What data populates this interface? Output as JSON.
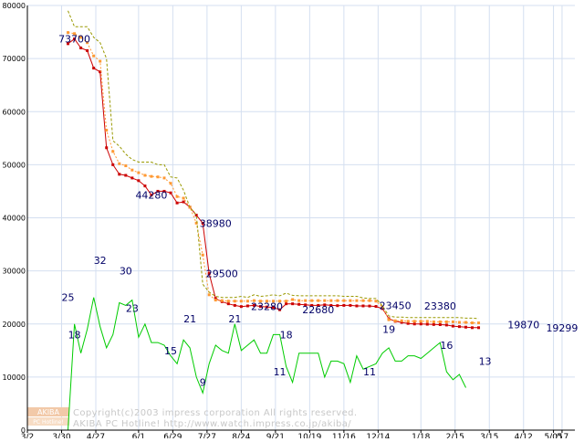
{
  "chart_data": {
    "type": "line",
    "ylim": [
      0,
      80000
    ],
    "y_ticks": [
      "0",
      "10000",
      "20000",
      "30000",
      "40000",
      "50000",
      "60000",
      "70000",
      "80000"
    ],
    "x_ticks": [
      "3/2",
      "3/30",
      "4/27",
      "6/1",
      "6/29",
      "7/27",
      "8/24",
      "9/21",
      "10/19",
      "11/16",
      "12/14",
      "1/18",
      "2/15",
      "3/15",
      "4/12",
      "5/05",
      "/17"
    ],
    "grid": true,
    "x_tick_positions": [
      0,
      4,
      8,
      13,
      17,
      21,
      25,
      29,
      33,
      37,
      41,
      46,
      50,
      54,
      58,
      61.5,
      62.5
    ],
    "x_max": 64,
    "x": [
      4.0,
      4.75,
      5.5,
      6.25,
      7.0,
      7.75,
      8.5,
      9.25,
      10.0,
      10.75,
      11.5,
      12.25,
      13.0,
      13.75,
      14.5,
      15.25,
      16.0,
      16.75,
      17.5,
      18.25,
      19.0,
      19.75,
      20.5,
      21.25,
      22.0,
      22.75,
      23.5,
      24.25,
      25.0,
      25.75,
      26.5,
      27.25,
      28.0,
      28.75,
      29.5,
      30.25,
      31.0,
      31.75,
      32.5,
      33.25,
      34.0,
      34.75,
      35.5,
      36.25,
      37.0,
      37.75,
      38.5,
      39.25,
      40.0,
      40.75,
      41.5,
      42.25,
      43.0,
      43.75,
      44.5,
      45.25,
      46.0,
      46.75,
      47.5,
      48.25,
      49.0,
      49.75,
      50.5,
      51.25,
      52.0,
      52.75,
      53.5,
      54.25,
      55.0,
      55.75,
      56.5,
      57.25,
      58.0,
      58.75,
      59.5,
      60.25,
      61.0,
      61.75,
      62.5,
      63.25
    ],
    "series": [
      {
        "color": "#cc0000",
        "style": "solid-marker",
        "values": [
          null,
          72800,
          73700,
          72000,
          71500,
          68200,
          67500,
          53200,
          50000,
          48200,
          48000,
          47500,
          47000,
          46000,
          44280,
          45000,
          45000,
          44700,
          42800,
          43000,
          42000,
          40500,
          38980,
          29500,
          24800,
          24200,
          23800,
          23500,
          23280,
          23400,
          23500,
          23300,
          23200,
          23100,
          22680,
          23800,
          23800,
          23700,
          23600,
          23500,
          23500,
          23600,
          23500,
          23450,
          23500,
          23500,
          23400,
          23400,
          23380,
          23300,
          22900,
          21000,
          20500,
          20300,
          20100,
          20000,
          20000,
          19950,
          19900,
          19870,
          19800,
          19600,
          19500,
          19400,
          19300,
          19299,
          null,
          null,
          null,
          null,
          null,
          null,
          null,
          null,
          null,
          null,
          null,
          null,
          null,
          null
        ]
      },
      {
        "color": "#ff9933",
        "style": "dotted-marker",
        "values": [
          null,
          74900,
          74700,
          74000,
          73000,
          70500,
          69500,
          56500,
          52500,
          50200,
          49800,
          49000,
          48500,
          48000,
          47800,
          47700,
          47500,
          46500,
          44000,
          43700,
          42000,
          39000,
          33000,
          25500,
          24500,
          24400,
          24300,
          24300,
          24300,
          24300,
          24400,
          24300,
          24300,
          24300,
          24300,
          24300,
          24600,
          24400,
          24400,
          24400,
          24400,
          24400,
          24400,
          24400,
          24400,
          24400,
          24400,
          24400,
          24400,
          24300,
          23200,
          20800,
          20600,
          20600,
          20500,
          20500,
          20500,
          20500,
          20400,
          20400,
          20400,
          20400,
          20300,
          20300,
          20200,
          20200,
          null,
          null,
          null,
          null,
          null,
          null,
          null,
          null,
          null,
          null,
          null,
          null,
          null,
          null
        ]
      },
      {
        "color": "#999900",
        "style": "dashed",
        "values": [
          null,
          79000,
          76000,
          76000,
          76000,
          74000,
          73000,
          70000,
          54500,
          53500,
          52000,
          51000,
          50500,
          50500,
          50500,
          50000,
          50000,
          47700,
          47500,
          45200,
          42000,
          40500,
          27500,
          26000,
          25200,
          25000,
          25000,
          25000,
          25200,
          25000,
          25500,
          25200,
          25300,
          25500,
          25300,
          25800,
          25400,
          25300,
          25300,
          25300,
          25300,
          25300,
          25300,
          25300,
          25200,
          25200,
          25200,
          24900,
          24800,
          24800,
          23400,
          21500,
          21300,
          21300,
          21200,
          21200,
          21200,
          21200,
          21200,
          21200,
          21200,
          21200,
          21200,
          21100,
          21100,
          21000,
          null,
          null,
          null,
          null,
          null,
          null,
          null,
          null,
          null,
          null,
          null,
          null,
          null,
          null
        ]
      },
      {
        "color": "#00cc00",
        "style": "solid",
        "values": [
          0,
          0,
          20000,
          14500,
          19000,
          25000,
          19500,
          15500,
          18000,
          24000,
          23500,
          24500,
          17500,
          20000,
          16500,
          16500,
          16000,
          14000,
          12500,
          17000,
          15500,
          10000,
          7000,
          12500,
          16000,
          15000,
          14500,
          20000,
          15000,
          16000,
          17000,
          14500,
          14500,
          18000,
          18000,
          12000,
          9000,
          14500,
          14500,
          14500,
          14500,
          10000,
          13000,
          13000,
          12500,
          9000,
          14000,
          11500,
          12000,
          12500,
          14500,
          15500,
          13000,
          13000,
          14000,
          14000,
          13500,
          14500,
          15500,
          16500,
          11000,
          9500,
          10500,
          8000,
          null,
          null,
          null,
          null,
          null,
          null,
          null,
          null,
          null,
          null,
          null,
          null,
          null,
          null,
          null,
          null
        ]
      }
    ],
    "data_labels": [
      {
        "text": "73700",
        "x": 5.5,
        "y": 73700
      },
      {
        "text": "44280",
        "x": 14.5,
        "y": 44280
      },
      {
        "text": "38980",
        "x": 22.0,
        "y": 38980
      },
      {
        "text": "29500",
        "x": 22.75,
        "y": 29500
      },
      {
        "text": "23280",
        "x": 28.0,
        "y": 23280
      },
      {
        "text": "22680",
        "x": 34.0,
        "y": 22680
      },
      {
        "text": "23450",
        "x": 43.0,
        "y": 23450
      },
      {
        "text": "23380",
        "x": 48.25,
        "y": 23380
      },
      {
        "text": "19870",
        "x": 58.0,
        "y": 19870
      },
      {
        "text": "19299",
        "x": 62.5,
        "y": 19299
      },
      {
        "text": "25",
        "x": 4.75,
        "y": 25000
      },
      {
        "text": "18",
        "x": 5.5,
        "y": 18000
      },
      {
        "text": "32",
        "x": 8.5,
        "y": 32000
      },
      {
        "text": "30",
        "x": 11.5,
        "y": 30000
      },
      {
        "text": "23",
        "x": 12.25,
        "y": 23000
      },
      {
        "text": "15",
        "x": 16.75,
        "y": 15000
      },
      {
        "text": "21",
        "x": 19.0,
        "y": 21000
      },
      {
        "text": "9",
        "x": 20.5,
        "y": 9000
      },
      {
        "text": "21",
        "x": 24.25,
        "y": 21000
      },
      {
        "text": "18",
        "x": 30.25,
        "y": 18000
      },
      {
        "text": "11",
        "x": 29.5,
        "y": 11000
      },
      {
        "text": "11",
        "x": 40.0,
        "y": 11000
      },
      {
        "text": "19",
        "x": 42.25,
        "y": 19000
      },
      {
        "text": "16",
        "x": 49.0,
        "y": 16000
      },
      {
        "text": "13",
        "x": 53.5,
        "y": 13000
      }
    ],
    "watermark": {
      "logo_top": "AKIBA",
      "logo_bottom": "PC Hotline!",
      "line1": "Copyright(c)2003 impress corporation All rights reserved.",
      "line2": "AKIBA PC Hotline!  http://www.watch.impress.co.jp/akiba/"
    }
  }
}
